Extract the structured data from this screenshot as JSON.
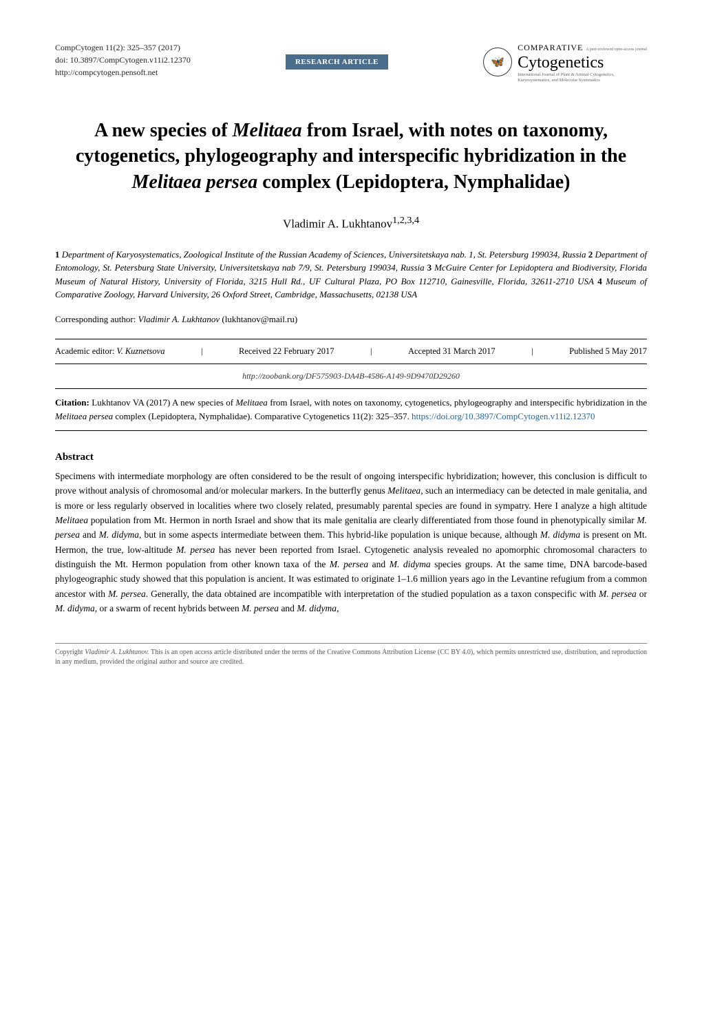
{
  "header": {
    "journal_ref": "CompCytogen 11(2): 325–357 (2017)",
    "doi": "doi: 10.3897/CompCytogen.v11i2.12370",
    "url": "http://compcytogen.pensoft.net",
    "badge": "RESEARCH ARTICLE",
    "journal_top": "COMPARATIVE",
    "peer_text": "A peer-reviewed open-access journal",
    "journal_main": "Cytogenetics",
    "journal_sub1": "International Journal of Plant & Animal Cytogenetics,",
    "journal_sub2": "Karyosystematics, and Molecular Systematics",
    "logo_glyph": "🦋"
  },
  "title": {
    "line1": "A new species of ",
    "genus1": "Melitaea",
    "line2": " from Israel, with notes on taxonomy, cytogenetics, phylogeography and interspecific hybridization in the ",
    "genus2": "Melitaea persea",
    "line3": " complex (Lepidoptera, Nymphalidae)"
  },
  "author": {
    "name": "Vladimir A. Lukhtanov",
    "sup": "1,2,3,4"
  },
  "affiliations": {
    "a1": "Department of Karyosystematics, Zoological Institute of the Russian Academy of Sciences, Universitetskaya nab. 1, St. Petersburg 199034, Russia",
    "a2": "Department of Entomology, St. Petersburg State University, Universitetskaya nab 7/9, St. Petersburg 199034, Russia",
    "a3": "McGuire Center for Lepidoptera and Biodiversity, Florida Museum of Natural History, University of Florida, 3215 Hull Rd., UF Cultural Plaza, PO Box 112710, Gainesville, Florida, 32611-2710 USA",
    "a4": "Museum of Comparative Zoology, Harvard University, 26 Oxford Street, Cambridge, Massachusetts, 02138 USA"
  },
  "corresponding": {
    "label": "Corresponding author: ",
    "name": "Vladimir A. Lukhtanov",
    "email": " (lukhtanov@mail.ru)"
  },
  "editor_line": {
    "editor_label": "Academic editor: ",
    "editor_name": "V. Kuznetsova",
    "received": "Received 22 February 2017",
    "accepted": "Accepted 31 March 2017",
    "published": "Published 5 May 2017"
  },
  "zoobank": "http://zoobank.org/DF575903-DA4B-4586-A149-9D9470D29260",
  "citation": {
    "label": "Citation: ",
    "text1": "Lukhtanov VA (2017) A new species of ",
    "sp1": "Melitaea",
    "text2": " from Israel, with notes on taxonomy, cytogenetics, phylogeography and interspecific hybridization in the ",
    "sp2": "Melitaea persea",
    "text3": " complex (Lepidoptera, Nymphalidae). Comparative Cytogenetics 11(2): 325–357. ",
    "doi": "https://doi.org/10.3897/CompCytogen.v11i2.12370"
  },
  "abstract": {
    "heading": "Abstract",
    "t1": "Specimens with intermediate morphology are often considered to be the result of ongoing interspecific hybridization; however, this conclusion is difficult to prove without analysis of chromosomal and/or molecular markers. In the butterfly genus ",
    "s1": "Melitaea",
    "t2": ", such an intermediacy can be detected in male genitalia, and is more or less regularly observed in localities where two closely related, presumably parental species are found in sympatry. Here I analyze a high altitude ",
    "s2": "Melitaea",
    "t3": " population from Mt. Hermon in north Israel and show that its male genitalia are clearly differentiated from those found in phenotypically similar ",
    "s3": "M. persea",
    "t4": " and ",
    "s4": "M. didyma",
    "t5": ", but in some aspects intermediate between them. This hybrid-like population is unique because, although ",
    "s5": "M. didyma",
    "t6": " is present on Mt. Hermon, the true, low-altitude ",
    "s6": "M. persea",
    "t7": " has never been reported from Israel. Cytogenetic analysis revealed no apomorphic chromosomal characters to distinguish the Mt. Hermon population from other known taxa of the ",
    "s7": "M. persea",
    "t8": " and ",
    "s8": "M. didyma",
    "t9": " species groups. At the same time, DNA barcode-based phylogeographic study showed that this population is ancient. It was estimated to originate 1–1.6 million years ago in the Levantine refugium from a common ancestor with ",
    "s9": "M. persea",
    "t10": ". Generally, the data obtained are incompatible with interpretation of the studied population as a taxon conspecific with ",
    "s10": "M. persea",
    "t11": " or ",
    "s11": "M. didyma",
    "t12": ", or a swarm of recent hybrids between ",
    "s12": "M. persea",
    "t13": " and ",
    "s13": "M. didyma",
    "t14": ","
  },
  "copyright": {
    "t1": "Copyright ",
    "name": "Vladimir A. Lukhtanov.",
    "t2": " This is an open access article distributed under the terms of the Creative Commons Attribution License (CC BY 4.0), which permits unrestricted use, distribution, and reproduction in any medium, provided the original author and source are credited."
  },
  "colors": {
    "badge_bg": "#4a6d8c",
    "link": "#2a6496",
    "rule": "#000000",
    "footer_rule": "#888888",
    "muted": "#555555"
  }
}
